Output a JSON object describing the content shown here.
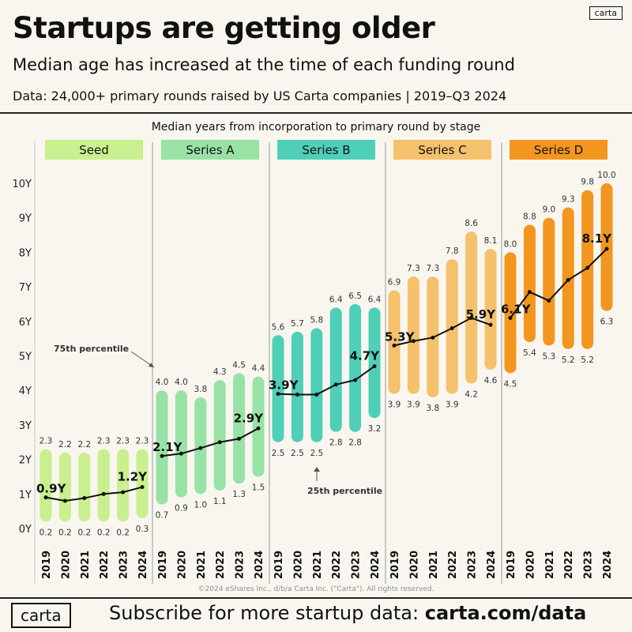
{
  "header": {
    "title": "Startups are getting older",
    "subtitle": "Median age has increased at the time of each funding round",
    "source": "Data: 24,000+ primary rounds raised by US Carta companies | 2019–Q3 2024",
    "brand": "carta"
  },
  "footer": {
    "copyright": "©2024 eShares Inc., d/b/a Carta Inc. (\"Carta\"). All rights reserved.",
    "brand": "carta",
    "cta_prefix": "Subscribe for more startup data: ",
    "cta_link": "carta.com/data"
  },
  "colors": {
    "Seed": "#c9ef8f",
    "Series A": "#98e2a6",
    "Series B": "#4fcfb8",
    "Series C": "#f5c16c",
    "Series D": "#f3961f",
    "median_line": "#111111",
    "background": "#f8f6ef"
  },
  "chart_data": {
    "type": "range-bar-with-median-line",
    "title": "Median years from incorporation to primary round by stage",
    "ylabel": "",
    "ylim": [
      0,
      10
    ],
    "y_ticks": [
      "0Y",
      "1Y",
      "2Y",
      "3Y",
      "4Y",
      "5Y",
      "6Y",
      "7Y",
      "8Y",
      "9Y",
      "10Y"
    ],
    "annotations": {
      "p75": "75th percentile",
      "p25": "25th percentile"
    },
    "groups": [
      {
        "name": "Seed",
        "years": [
          "2019",
          "2020",
          "2021",
          "2022",
          "2023",
          "2024"
        ],
        "p75": [
          2.3,
          2.2,
          2.2,
          2.3,
          2.3,
          2.3
        ],
        "p25": [
          0.2,
          0.2,
          0.2,
          0.2,
          0.2,
          0.3
        ],
        "median": [
          0.9,
          0.8,
          0.88,
          1.0,
          1.05,
          1.2
        ],
        "median_labels": {
          "first": "0.9Y",
          "last": "1.2Y"
        }
      },
      {
        "name": "Series A",
        "years": [
          "2019",
          "2020",
          "2021",
          "2022",
          "2023",
          "2024"
        ],
        "p75": [
          4.0,
          4.0,
          3.8,
          4.3,
          4.5,
          4.4
        ],
        "p25": [
          0.7,
          0.9,
          1.0,
          1.1,
          1.3,
          1.5
        ],
        "median": [
          2.1,
          2.17,
          2.33,
          2.5,
          2.6,
          2.9
        ],
        "median_labels": {
          "first": "2.1Y",
          "last": "2.9Y"
        }
      },
      {
        "name": "Series B",
        "years": [
          "2019",
          "2020",
          "2021",
          "2022",
          "2023",
          "2024"
        ],
        "p75": [
          5.6,
          5.7,
          5.8,
          6.4,
          6.5,
          6.4
        ],
        "p25": [
          2.5,
          2.5,
          2.5,
          2.8,
          2.8,
          3.2
        ],
        "median": [
          3.9,
          3.88,
          3.88,
          4.17,
          4.3,
          4.7
        ],
        "median_labels": {
          "first": "3.9Y",
          "last": "4.7Y"
        }
      },
      {
        "name": "Series C",
        "years": [
          "2019",
          "2020",
          "2021",
          "2022",
          "2023",
          "2024"
        ],
        "p75": [
          6.9,
          7.3,
          7.3,
          7.8,
          8.6,
          8.1
        ],
        "p25": [
          3.9,
          3.9,
          3.8,
          3.9,
          4.2,
          4.6
        ],
        "median": [
          5.3,
          5.43,
          5.53,
          5.8,
          6.1,
          5.9
        ],
        "median_labels": {
          "first": "5.3Y",
          "last": "5.9Y"
        }
      },
      {
        "name": "Series D",
        "years": [
          "2019",
          "2020",
          "2021",
          "2022",
          "2023",
          "2024"
        ],
        "p75": [
          8.0,
          8.8,
          9.0,
          9.3,
          9.8,
          10.0
        ],
        "p25": [
          4.5,
          5.4,
          5.3,
          5.2,
          5.2,
          6.3
        ],
        "median": [
          6.1,
          6.85,
          6.6,
          7.2,
          7.55,
          8.1
        ],
        "median_labels": {
          "first": "6.1Y",
          "last": "8.1Y"
        }
      }
    ]
  }
}
